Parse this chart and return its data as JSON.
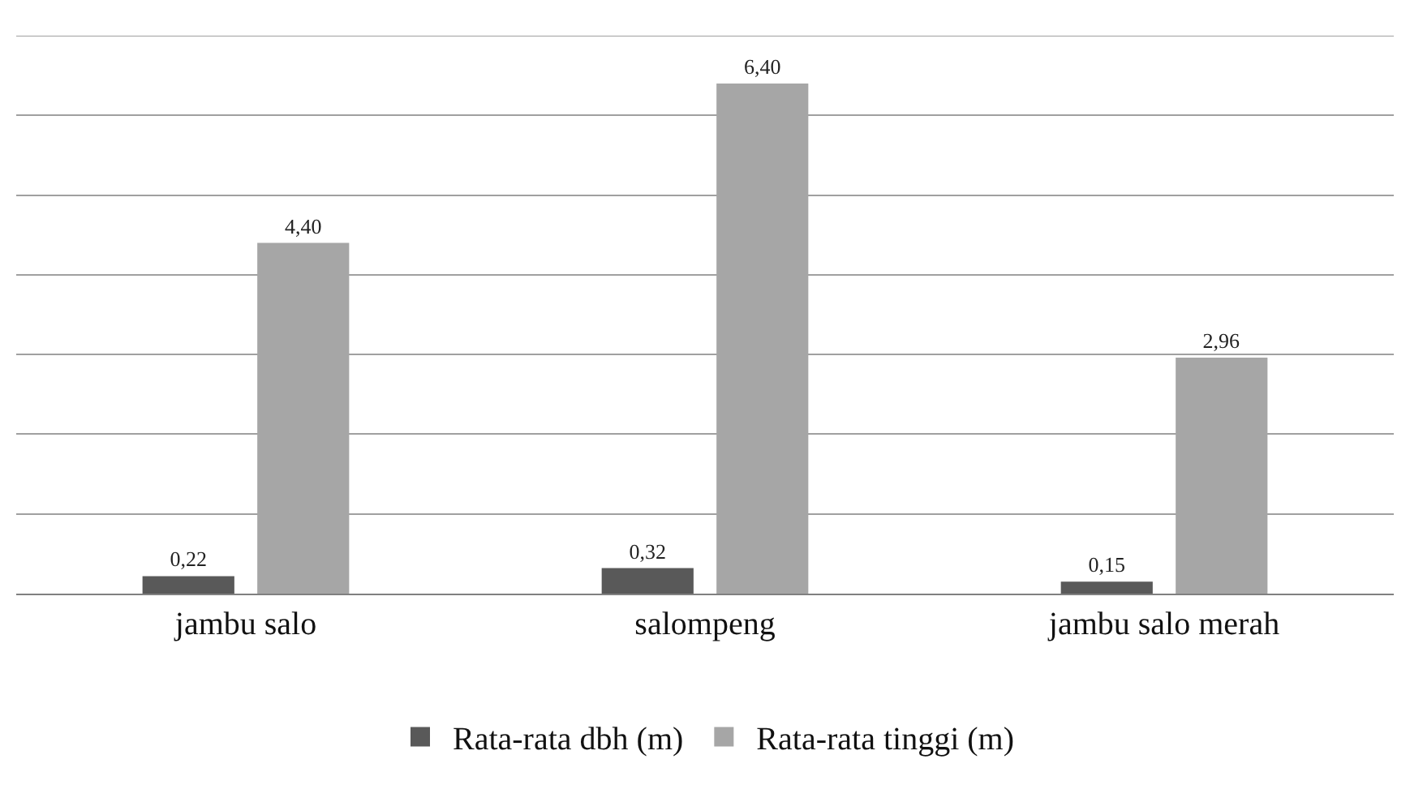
{
  "chart_data": {
    "type": "bar",
    "categories": [
      "jambu salo",
      "salompeng",
      "jambu salo merah"
    ],
    "series": [
      {
        "name": "Rata-rata dbh (m)",
        "color": "#595959",
        "values": [
          0.22,
          0.32,
          0.15
        ],
        "value_labels": [
          "0,22",
          "0,32",
          "0,15"
        ]
      },
      {
        "name": "Rata-rata tinggi (m)",
        "color": "#a6a6a6",
        "values": [
          4.4,
          6.4,
          2.96
        ],
        "value_labels": [
          "4,40",
          "6,40",
          "2,96"
        ]
      }
    ],
    "ylim": [
      0,
      7
    ],
    "yticks": [
      {
        "value": 0,
        "label": null
      },
      {
        "value": 1,
        "label": null
      },
      {
        "value": 2,
        "label": null
      },
      {
        "value": 3,
        "label": null
      },
      {
        "value": 4,
        "label": null
      },
      {
        "value": 5,
        "label": null
      },
      {
        "value": 6,
        "label": null
      },
      {
        "value": 7,
        "label": null
      }
    ],
    "grid": "y",
    "legend": "bottom",
    "tick_labels": "x"
  }
}
